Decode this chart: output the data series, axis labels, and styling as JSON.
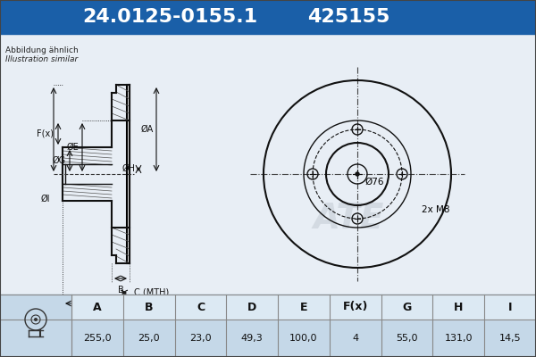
{
  "title_part_number": "24.0125-0155.1",
  "title_ref": "425155",
  "header_bg": "#1a5fa8",
  "header_text_color": "#ffffff",
  "bg_color": "#d6e4f0",
  "table_bg": "#d6e4f0",
  "body_bg": "#e8eef5",
  "note_line1": "Abbildung ähnlich",
  "note_line2": "Illustration similar",
  "dim_labels": [
    "A",
    "B",
    "C",
    "D",
    "E",
    "F(x)",
    "G",
    "H",
    "I"
  ],
  "dim_values": [
    "255,0",
    "25,0",
    "23,0",
    "49,3",
    "100,0",
    "4",
    "55,0",
    "131,0",
    "14,5"
  ],
  "center_label": "Ø76",
  "bolt_label": "2x M8",
  "c_label": "C (MTH)"
}
